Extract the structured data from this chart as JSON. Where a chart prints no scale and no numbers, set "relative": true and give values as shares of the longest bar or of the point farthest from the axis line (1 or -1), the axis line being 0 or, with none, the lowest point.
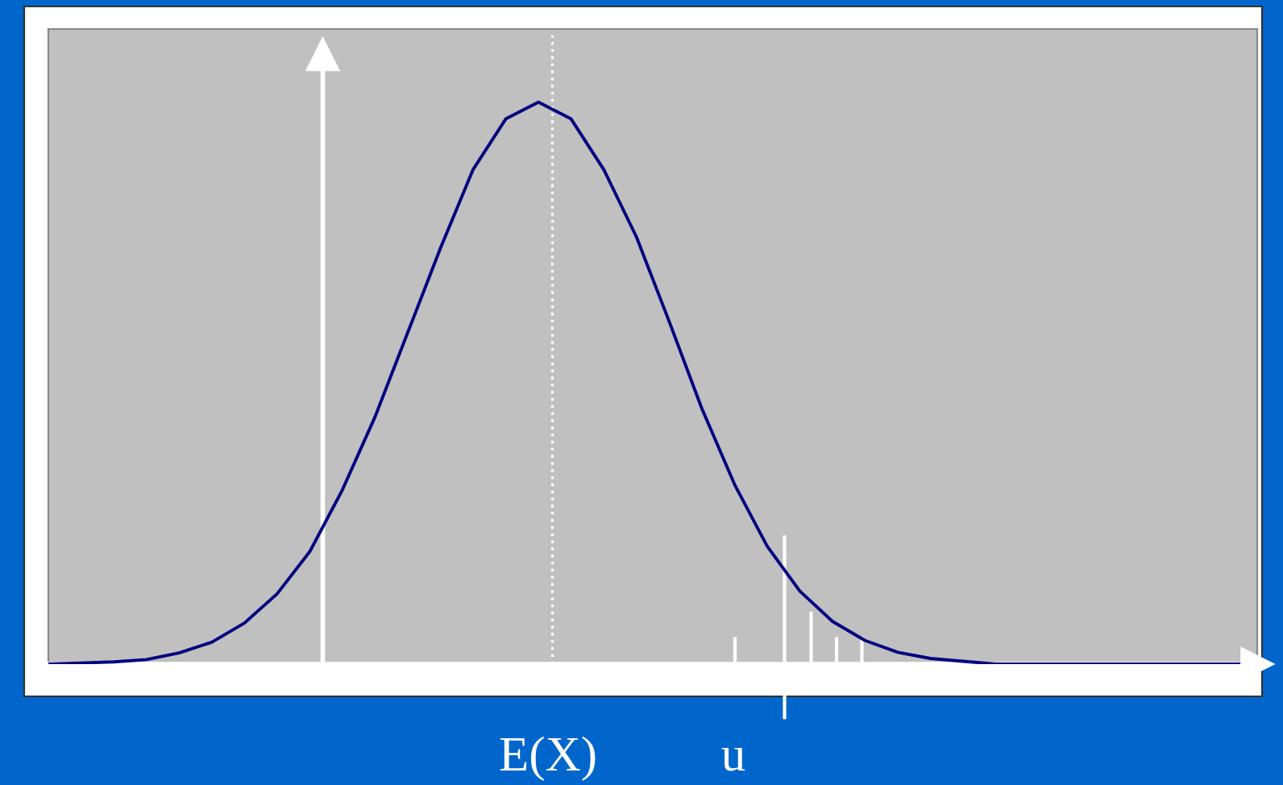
{
  "chart_data": {
    "type": "line",
    "relative": true,
    "categories": [
      null,
      null,
      null,
      null,
      null,
      null,
      null,
      null,
      null,
      null,
      null,
      null,
      null,
      null,
      null,
      null,
      null,
      null,
      null,
      null,
      null,
      null,
      null,
      null,
      null,
      null,
      null,
      null,
      null,
      null,
      null,
      null,
      null,
      null,
      null,
      null,
      null,
      null
    ],
    "series": [
      {
        "color": "#000080",
        "values": [
          0,
          0.002,
          0.004,
          0.008,
          0.02,
          0.039,
          0.073,
          0.125,
          0.2,
          0.31,
          0.44,
          0.59,
          0.74,
          0.88,
          0.97,
          1.0,
          0.97,
          0.88,
          0.76,
          0.61,
          0.455,
          0.32,
          0.21,
          0.13,
          0.076,
          0.042,
          0.021,
          0.01,
          0.005,
          0,
          0,
          0,
          0,
          0,
          0,
          0,
          0,
          0
        ]
      }
    ],
    "annotations": [
      "E(X)",
      "u"
    ],
    "legend": false,
    "marker": "none"
  }
}
